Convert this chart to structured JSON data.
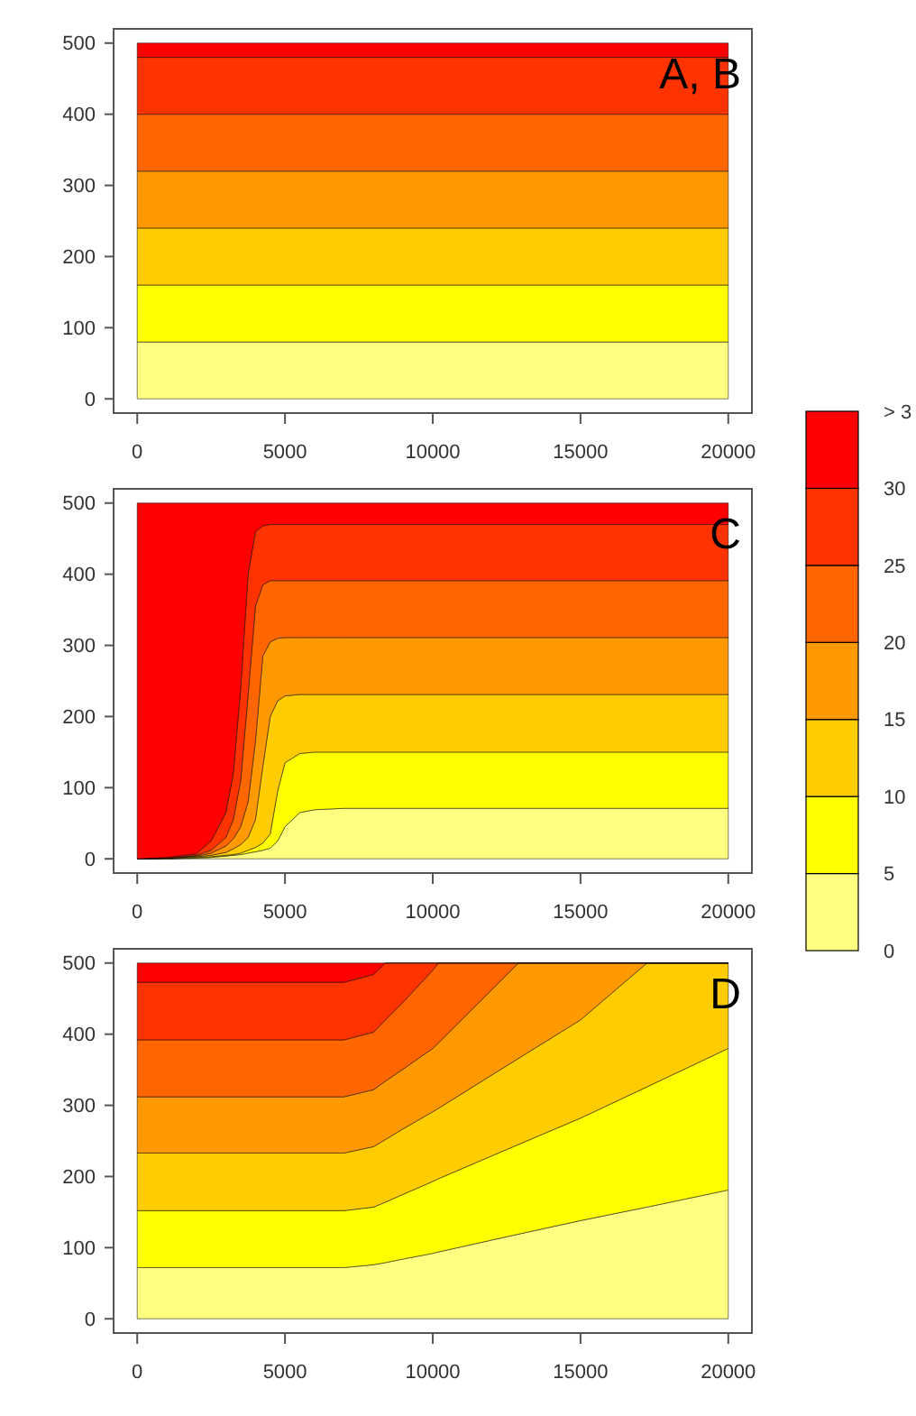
{
  "chart_data": [
    {
      "type": "area",
      "stacked": true,
      "x": [
        0,
        20000
      ],
      "xlim": [
        -800,
        20800
      ],
      "ylim": [
        -20,
        520
      ],
      "xticks": [
        0,
        5000,
        10000,
        15000,
        20000
      ],
      "yticks": [
        0,
        100,
        200,
        300,
        400,
        500
      ],
      "annotations": [
        "A, B"
      ],
      "series": [
        {
          "color": "#ffff80",
          "values": [
            80,
            80
          ]
        },
        {
          "color": "#ffff00",
          "values": [
            80,
            80
          ]
        },
        {
          "color": "#ffcc00",
          "values": [
            80,
            80
          ]
        },
        {
          "color": "#ff9900",
          "values": [
            80,
            80
          ]
        },
        {
          "color": "#ff6600",
          "values": [
            80,
            80
          ]
        },
        {
          "color": "#ff3300",
          "values": [
            80,
            80
          ]
        },
        {
          "color": "#ff0000",
          "values": [
            20,
            20
          ]
        }
      ]
    },
    {
      "type": "area",
      "stacked": true,
      "x": [
        0,
        1000,
        2000,
        2500,
        3000,
        3250,
        3500,
        3750,
        4000,
        4250,
        4500,
        4750,
        5000,
        5500,
        6000,
        7000,
        20000
      ],
      "xlim": [
        -800,
        20800
      ],
      "ylim": [
        -20,
        520
      ],
      "xticks": [
        0,
        5000,
        10000,
        15000,
        20000
      ],
      "yticks": [
        0,
        100,
        200,
        300,
        400,
        500
      ],
      "annotations": [
        "C"
      ],
      "series": [
        {
          "color": "#ffff80",
          "values": [
            0,
            0,
            1,
            2,
            4,
            5,
            6,
            8,
            10,
            12,
            15,
            25,
            45,
            65,
            69,
            71,
            71
          ]
        },
        {
          "color": "#ffff00",
          "values": [
            0,
            0,
            1,
            1,
            1,
            1,
            2,
            4,
            6,
            10,
            20,
            70,
            90,
            83,
            81,
            79,
            79
          ]
        },
        {
          "color": "#ffcc00",
          "values": [
            0,
            1,
            1,
            2,
            4,
            8,
            12,
            18,
            39,
            108,
            165,
            127,
            94,
            83,
            81,
            81,
            81
          ]
        },
        {
          "color": "#ff9900",
          "values": [
            0,
            0,
            1,
            3,
            9,
            14,
            25,
            50,
            110,
            155,
            105,
            88,
            82,
            80,
            80,
            80,
            80
          ]
        },
        {
          "color": "#ff6600",
          "values": [
            0,
            0,
            1,
            4,
            12,
            27,
            65,
            150,
            190,
            100,
            86,
            81,
            80,
            80,
            80,
            80,
            80
          ]
        },
        {
          "color": "#ff3300",
          "values": [
            0,
            1,
            2,
            13,
            35,
            65,
            130,
            170,
            105,
            83,
            79,
            79,
            79,
            79,
            79,
            79,
            79
          ]
        },
        {
          "color": "#ff0000",
          "values": [
            500,
            498,
            493,
            475,
            435,
            380,
            260,
            100,
            40,
            32,
            30,
            30,
            30,
            30,
            30,
            30,
            30
          ]
        }
      ]
    },
    {
      "type": "area",
      "stacked": true,
      "x": [
        0,
        7000,
        8000,
        8400,
        9000,
        10000,
        10200,
        12900,
        15000,
        17250,
        20000
      ],
      "xlim": [
        -800,
        20800
      ],
      "ylim": [
        -20,
        520
      ],
      "xticks": [
        0,
        5000,
        10000,
        15000,
        20000
      ],
      "yticks": [
        0,
        100,
        200,
        300,
        400,
        500
      ],
      "annotations": [
        "D"
      ],
      "series": [
        {
          "color": "#ffff80",
          "values": [
            72,
            72,
            76,
            79,
            84,
            92,
            94,
            119,
            138,
            157,
            181
          ]
        },
        {
          "color": "#ffff00",
          "values": [
            80,
            80,
            81,
            85,
            91,
            101,
            103,
            126,
            144,
            169,
            199
          ]
        },
        {
          "color": "#ffcc00",
          "values": [
            81,
            81,
            85,
            88,
            92,
            98,
            99,
            121,
            138,
            174,
            120
          ]
        },
        {
          "color": "#ff9900",
          "values": [
            79,
            79,
            80,
            82,
            84,
            89,
            92,
            134,
            80,
            0,
            0
          ]
        },
        {
          "color": "#ff6600",
          "values": [
            80,
            80,
            81,
            86,
            94,
            110,
            112,
            0,
            0,
            0,
            0
          ]
        },
        {
          "color": "#ff3300",
          "values": [
            81,
            81,
            81,
            80,
            55,
            10,
            0,
            0,
            0,
            0,
            0
          ]
        },
        {
          "color": "#ff0000",
          "values": [
            27,
            27,
            16,
            0,
            0,
            0,
            0,
            0,
            0,
            0,
            0
          ]
        }
      ]
    },
    {
      "type": "bar",
      "stacked": true,
      "categories": [
        null
      ],
      "ylim": [
        0,
        35
      ],
      "yticks": [
        0,
        5,
        10,
        15,
        20,
        25,
        30,
        {
          "value": 35,
          "label": "> 3"
        }
      ],
      "series": [
        {
          "color": "#ffff80",
          "values": [
            5
          ]
        },
        {
          "color": "#ffff00",
          "values": [
            5
          ]
        },
        {
          "color": "#ffcc00",
          "values": [
            5
          ]
        },
        {
          "color": "#ff9900",
          "values": [
            5
          ]
        },
        {
          "color": "#ff6600",
          "values": [
            5
          ]
        },
        {
          "color": "#ff3300",
          "values": [
            5
          ]
        },
        {
          "color": "#ff0000",
          "values": [
            5
          ]
        }
      ]
    }
  ]
}
